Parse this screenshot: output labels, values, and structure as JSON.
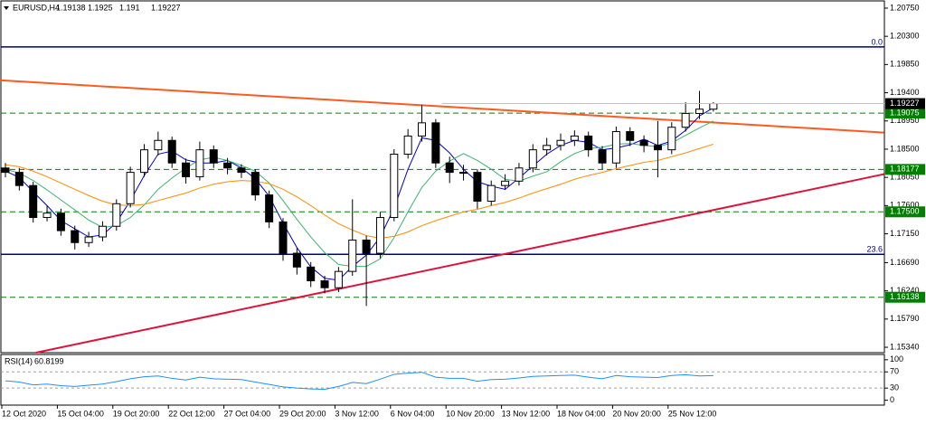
{
  "chart_data": [
    {
      "type": "candlestick",
      "title": "EURUSD,H4",
      "categories": [
        "12 Oct 2020",
        null,
        null,
        null,
        "15 Oct 04:00",
        null,
        null,
        null,
        "19 Oct 20:00",
        null,
        null,
        null,
        "22 Oct 12:00",
        null,
        null,
        null,
        "27 Oct 04:00",
        null,
        null,
        null,
        "29 Oct 20:00",
        null,
        null,
        null,
        "3 Nov 12:00",
        null,
        null,
        null,
        "6 Nov 04:00",
        null,
        null,
        null,
        "10 Nov 20:00",
        null,
        null,
        null,
        "13 Nov 12:00",
        null,
        null,
        null,
        "18 Nov 04:00",
        null,
        null,
        null,
        "20 Nov 20:00",
        null,
        null,
        null,
        "25 Nov 12:00",
        null,
        null,
        null
      ],
      "open": [
        1.182,
        1.1813,
        1.1792,
        1.1741,
        1.1748,
        1.172,
        1.1701,
        1.171,
        1.1727,
        1.1763,
        1.1813,
        1.1849,
        1.1864,
        1.1828,
        1.1806,
        1.1849,
        1.1828,
        1.182,
        1.1813,
        1.1777,
        1.1734,
        1.1684,
        1.1662,
        1.164,
        1.1629,
        1.1655,
        1.1705,
        1.1684,
        1.1741,
        1.1842,
        1.1871,
        1.1892,
        1.1828,
        1.1813,
        1.1813,
        1.1767,
        1.1792,
        1.1799,
        1.182,
        1.1849,
        1.1856,
        1.1864,
        1.1871,
        1.1849,
        1.1828,
        1.1878,
        1.1864,
        1.1856,
        1.1849,
        1.1885,
        1.1907,
        1.19138
      ],
      "high": [
        1.1828,
        1.182,
        1.1798,
        1.176,
        1.1755,
        1.1728,
        1.1718,
        1.1735,
        1.177,
        1.1822,
        1.1858,
        1.1878,
        1.187,
        1.1835,
        1.1862,
        1.1856,
        1.1836,
        1.1826,
        1.1818,
        1.1784,
        1.174,
        1.1692,
        1.167,
        1.1648,
        1.1662,
        1.177,
        1.1712,
        1.175,
        1.185,
        1.1882,
        1.1921,
        1.1898,
        1.1838,
        1.1825,
        1.1818,
        1.18,
        1.181,
        1.1828,
        1.1858,
        1.1868,
        1.1875,
        1.188,
        1.1878,
        1.1855,
        1.1886,
        1.1885,
        1.1872,
        1.1895,
        1.1893,
        1.1925,
        1.1943,
        1.1925
      ],
      "low": [
        1.1805,
        1.1784,
        1.1733,
        1.1735,
        1.1712,
        1.169,
        1.1694,
        1.1703,
        1.172,
        1.1757,
        1.1806,
        1.184,
        1.182,
        1.1795,
        1.18,
        1.182,
        1.181,
        1.1804,
        1.1768,
        1.1724,
        1.1672,
        1.165,
        1.163,
        1.162,
        1.1622,
        1.1648,
        1.16,
        1.1676,
        1.1735,
        1.1835,
        1.1862,
        1.182,
        1.1796,
        1.18,
        1.1755,
        1.176,
        1.1785,
        1.1792,
        1.1813,
        1.184,
        1.1848,
        1.1855,
        1.1838,
        1.1818,
        1.182,
        1.1855,
        1.1845,
        1.1805,
        1.1842,
        1.1878,
        1.1898,
        1.191
      ],
      "close": [
        1.1813,
        1.1792,
        1.1741,
        1.1748,
        1.172,
        1.1701,
        1.171,
        1.1727,
        1.1763,
        1.1813,
        1.1849,
        1.1864,
        1.1828,
        1.1806,
        1.1849,
        1.1828,
        1.182,
        1.1813,
        1.1777,
        1.1734,
        1.1684,
        1.1662,
        1.164,
        1.1629,
        1.1655,
        1.1705,
        1.1684,
        1.1741,
        1.1842,
        1.1871,
        1.1892,
        1.1828,
        1.1813,
        1.1813,
        1.1767,
        1.1792,
        1.1799,
        1.182,
        1.1849,
        1.1856,
        1.1864,
        1.1871,
        1.1849,
        1.1828,
        1.1878,
        1.1864,
        1.1856,
        1.1849,
        1.1885,
        1.1907,
        1.19138,
        1.19227
      ],
      "up_color": "#ffffff",
      "down_color": "#000000",
      "moving_averages": [
        {
          "color": "#0000cd",
          "values": [
            1.1815,
            1.1805,
            1.1782,
            1.176,
            1.1736,
            1.1723,
            1.171,
            1.1713,
            1.1733,
            1.1768,
            1.1808,
            1.1842,
            1.1847,
            1.1833,
            1.1828,
            1.1828,
            1.1832,
            1.182,
            1.1803,
            1.1775,
            1.1732,
            1.1693,
            1.1662,
            1.1644,
            1.1641,
            1.1663,
            1.1681,
            1.171,
            1.1756,
            1.1818,
            1.1868,
            1.1864,
            1.1844,
            1.1818,
            1.1798,
            1.1791,
            1.1786,
            1.1804,
            1.1823,
            1.1842,
            1.1856,
            1.1864,
            1.1861,
            1.1849,
            1.1852,
            1.1857,
            1.1866,
            1.1856,
            1.1863,
            1.188,
            1.1903,
            1.1916
          ]
        },
        {
          "color": "#3cb371",
          "values": [
            1.1818,
            1.1812,
            1.18,
            1.1785,
            1.1769,
            1.1753,
            1.1737,
            1.1725,
            1.1728,
            1.1741,
            1.1761,
            1.1786,
            1.1804,
            1.182,
            1.1833,
            1.1837,
            1.1832,
            1.1824,
            1.1815,
            1.1796,
            1.1768,
            1.1738,
            1.171,
            1.1685,
            1.1666,
            1.1663,
            1.1663,
            1.1675,
            1.1709,
            1.175,
            1.1789,
            1.1815,
            1.1831,
            1.1843,
            1.1832,
            1.1818,
            1.1802,
            1.1799,
            1.1807,
            1.1814,
            1.183,
            1.1843,
            1.1851,
            1.1853,
            1.1858,
            1.1859,
            1.1856,
            1.1854,
            1.186,
            1.1872,
            1.1884,
            1.1895
          ]
        },
        {
          "color": "#ff8c00",
          "values": [
            1.1825,
            1.1822,
            1.1815,
            1.1806,
            1.1796,
            1.1786,
            1.1776,
            1.1767,
            1.1761,
            1.176,
            1.1762,
            1.1768,
            1.1774,
            1.178,
            1.1788,
            1.1794,
            1.1798,
            1.18,
            1.1799,
            1.1795,
            1.1786,
            1.1774,
            1.176,
            1.1745,
            1.1731,
            1.1721,
            1.1712,
            1.1708,
            1.1711,
            1.1718,
            1.1728,
            1.1736,
            1.1743,
            1.175,
            1.1754,
            1.176,
            1.1765,
            1.1772,
            1.178,
            1.1787,
            1.1794,
            1.1802,
            1.1808,
            1.1813,
            1.1819,
            1.1824,
            1.1829,
            1.1832,
            1.1838,
            1.1844,
            1.1851,
            1.1858
          ]
        }
      ],
      "ylim": [
        1.15254,
        1.20865
      ],
      "yticks": [
        {
          "value": 1.2075,
          "label": "1.20750"
        },
        {
          "value": 1.203,
          "label": "1.20300"
        },
        {
          "value": 1.1985,
          "label": "1.19850"
        },
        {
          "value": 1.194,
          "label": "1.19400"
        },
        {
          "value": 1.1895,
          "label": "1.18950"
        },
        {
          "value": 1.185,
          "label": "1.18500"
        },
        {
          "value": 1.1805,
          "label": "1.18050"
        },
        {
          "value": 1.176,
          "label": "1.17600"
        },
        {
          "value": 1.1715,
          "label": "1.17150"
        },
        {
          "value": 1.1669,
          "label": "1.16690"
        },
        {
          "value": 1.1624,
          "label": "1.16240"
        },
        {
          "value": 1.1579,
          "label": "1.15790"
        },
        {
          "value": 1.1534,
          "label": "1.15340"
        }
      ],
      "levels": [
        1.19075,
        1.18177,
        {
          "value": 1.175,
          "label": "1.17500"
        },
        1.16138
      ],
      "level_color": "#008000",
      "fib_levels": [
        {
          "value": 1.20131,
          "label": "0.0"
        },
        {
          "value": 1.16822,
          "label": "23.6"
        }
      ],
      "fib_color": "#000080",
      "trend_lines": [
        {
          "color": "#ff5a1f",
          "x": [
            -0.4,
            63.3
          ],
          "values": [
            1.19599,
            1.18764
          ]
        },
        {
          "color": "#dc143c",
          "x": [
            2.2,
            63.3
          ],
          "values": [
            1.15254,
            1.18102
          ]
        }
      ]
    },
    {
      "type": "line",
      "title": "RSI(14)",
      "color": "#1e90ff",
      "values": [
        48,
        45,
        38,
        40,
        36,
        34,
        37,
        40,
        46,
        53,
        58,
        60,
        54,
        50,
        57,
        53,
        52,
        51,
        45,
        39,
        33,
        30,
        28,
        27,
        34,
        44,
        41,
        52,
        64,
        67,
        69,
        57,
        54,
        54,
        47,
        51,
        52,
        55,
        59,
        60,
        61,
        62,
        57,
        53,
        61,
        58,
        57,
        56,
        61,
        63,
        60,
        60.8199
      ],
      "ylim": [
        -12,
        113
      ],
      "yticks": [
        100,
        70,
        30,
        0
      ],
      "levels": [
        70,
        30
      ]
    }
  ]
}
